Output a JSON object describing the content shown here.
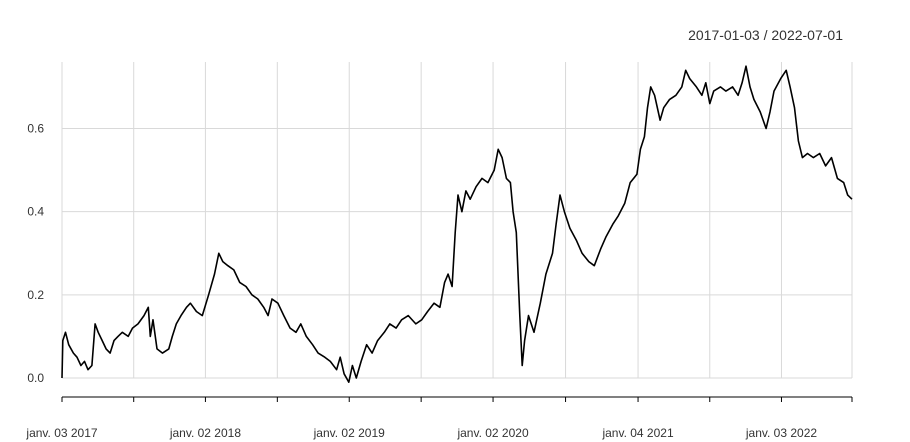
{
  "chart_data": {
    "type": "line",
    "title": "",
    "range_label": "2017-01-03 / 2022-07-01",
    "xlabel": "",
    "ylabel": "",
    "x_start": "2017-01-03",
    "x_end": "2022-07-01",
    "ylim": [
      -0.01,
      0.76
    ],
    "y_ticks": [
      0.0,
      0.2,
      0.4,
      0.6
    ],
    "y_tick_labels": [
      "0.0",
      "0.2",
      "0.4",
      "0.6"
    ],
    "x_tick_labels": [
      "janv. 03 2017",
      "janv. 02 2018",
      "janv. 02 2019",
      "janv. 02 2020",
      "janv. 04 2021",
      "janv. 03 2022"
    ],
    "x_tick_dates": [
      "2017-01-03",
      "2018-01-02",
      "2019-01-02",
      "2020-01-02",
      "2021-01-04",
      "2022-01-03"
    ],
    "grid": true,
    "series": [
      {
        "color": "#000000",
        "points": [
          [
            "2017-01-03",
            0.0
          ],
          [
            "2017-01-05",
            0.09
          ],
          [
            "2017-01-12",
            0.11
          ],
          [
            "2017-01-20",
            0.08
          ],
          [
            "2017-02-01",
            0.06
          ],
          [
            "2017-02-10",
            0.05
          ],
          [
            "2017-02-20",
            0.03
          ],
          [
            "2017-03-01",
            0.04
          ],
          [
            "2017-03-10",
            0.02
          ],
          [
            "2017-03-20",
            0.03
          ],
          [
            "2017-03-28",
            0.13
          ],
          [
            "2017-04-05",
            0.11
          ],
          [
            "2017-04-15",
            0.09
          ],
          [
            "2017-04-25",
            0.07
          ],
          [
            "2017-05-05",
            0.06
          ],
          [
            "2017-05-15",
            0.09
          ],
          [
            "2017-05-25",
            0.1
          ],
          [
            "2017-06-05",
            0.11
          ],
          [
            "2017-06-20",
            0.1
          ],
          [
            "2017-07-01",
            0.12
          ],
          [
            "2017-07-15",
            0.13
          ],
          [
            "2017-07-30",
            0.15
          ],
          [
            "2017-08-10",
            0.17
          ],
          [
            "2017-08-15",
            0.1
          ],
          [
            "2017-08-22",
            0.14
          ],
          [
            "2017-09-01",
            0.07
          ],
          [
            "2017-09-15",
            0.06
          ],
          [
            "2017-10-01",
            0.07
          ],
          [
            "2017-10-10",
            0.1
          ],
          [
            "2017-10-20",
            0.13
          ],
          [
            "2017-11-01",
            0.15
          ],
          [
            "2017-11-15",
            0.17
          ],
          [
            "2017-11-25",
            0.18
          ],
          [
            "2017-12-10",
            0.16
          ],
          [
            "2017-12-25",
            0.15
          ],
          [
            "2018-01-10",
            0.2
          ],
          [
            "2018-01-25",
            0.25
          ],
          [
            "2018-02-05",
            0.3
          ],
          [
            "2018-02-15",
            0.28
          ],
          [
            "2018-02-28",
            0.27
          ],
          [
            "2018-03-15",
            0.26
          ],
          [
            "2018-03-30",
            0.23
          ],
          [
            "2018-04-15",
            0.22
          ],
          [
            "2018-04-30",
            0.2
          ],
          [
            "2018-05-15",
            0.19
          ],
          [
            "2018-05-30",
            0.17
          ],
          [
            "2018-06-10",
            0.15
          ],
          [
            "2018-06-20",
            0.19
          ],
          [
            "2018-07-05",
            0.18
          ],
          [
            "2018-07-20",
            0.15
          ],
          [
            "2018-08-05",
            0.12
          ],
          [
            "2018-08-20",
            0.11
          ],
          [
            "2018-09-01",
            0.13
          ],
          [
            "2018-09-15",
            0.1
          ],
          [
            "2018-10-01",
            0.08
          ],
          [
            "2018-10-15",
            0.06
          ],
          [
            "2018-11-01",
            0.05
          ],
          [
            "2018-11-15",
            0.04
          ],
          [
            "2018-12-01",
            0.02
          ],
          [
            "2018-12-10",
            0.05
          ],
          [
            "2018-12-20",
            0.01
          ],
          [
            "2019-01-01",
            -0.01
          ],
          [
            "2019-01-10",
            0.03
          ],
          [
            "2019-01-20",
            0.0
          ],
          [
            "2019-02-01",
            0.04
          ],
          [
            "2019-02-15",
            0.08
          ],
          [
            "2019-03-01",
            0.06
          ],
          [
            "2019-03-15",
            0.09
          ],
          [
            "2019-04-01",
            0.11
          ],
          [
            "2019-04-15",
            0.13
          ],
          [
            "2019-05-01",
            0.12
          ],
          [
            "2019-05-15",
            0.14
          ],
          [
            "2019-06-01",
            0.15
          ],
          [
            "2019-06-20",
            0.13
          ],
          [
            "2019-07-05",
            0.14
          ],
          [
            "2019-07-20",
            0.16
          ],
          [
            "2019-08-05",
            0.18
          ],
          [
            "2019-08-20",
            0.17
          ],
          [
            "2019-09-01",
            0.23
          ],
          [
            "2019-09-10",
            0.25
          ],
          [
            "2019-09-20",
            0.22
          ],
          [
            "2019-09-28",
            0.35
          ],
          [
            "2019-10-05",
            0.44
          ],
          [
            "2019-10-15",
            0.4
          ],
          [
            "2019-10-25",
            0.45
          ],
          [
            "2019-11-05",
            0.43
          ],
          [
            "2019-11-20",
            0.46
          ],
          [
            "2019-12-05",
            0.48
          ],
          [
            "2019-12-20",
            0.47
          ],
          [
            "2020-01-05",
            0.5
          ],
          [
            "2020-01-15",
            0.55
          ],
          [
            "2020-01-25",
            0.53
          ],
          [
            "2020-02-05",
            0.48
          ],
          [
            "2020-02-15",
            0.47
          ],
          [
            "2020-02-22",
            0.4
          ],
          [
            "2020-03-01",
            0.35
          ],
          [
            "2020-03-10",
            0.15
          ],
          [
            "2020-03-16",
            0.03
          ],
          [
            "2020-03-22",
            0.09
          ],
          [
            "2020-04-01",
            0.15
          ],
          [
            "2020-04-15",
            0.11
          ],
          [
            "2020-05-01",
            0.18
          ],
          [
            "2020-05-15",
            0.25
          ],
          [
            "2020-06-01",
            0.3
          ],
          [
            "2020-06-10",
            0.37
          ],
          [
            "2020-06-20",
            0.44
          ],
          [
            "2020-07-01",
            0.4
          ],
          [
            "2020-07-15",
            0.36
          ],
          [
            "2020-08-01",
            0.33
          ],
          [
            "2020-08-15",
            0.3
          ],
          [
            "2020-09-01",
            0.28
          ],
          [
            "2020-09-15",
            0.27
          ],
          [
            "2020-10-01",
            0.31
          ],
          [
            "2020-10-15",
            0.34
          ],
          [
            "2020-11-01",
            0.37
          ],
          [
            "2020-11-15",
            0.39
          ],
          [
            "2020-12-01",
            0.42
          ],
          [
            "2020-12-15",
            0.47
          ],
          [
            "2021-01-01",
            0.49
          ],
          [
            "2021-01-10",
            0.55
          ],
          [
            "2021-01-20",
            0.58
          ],
          [
            "2021-01-28",
            0.65
          ],
          [
            "2021-02-05",
            0.7
          ],
          [
            "2021-02-15",
            0.68
          ],
          [
            "2021-03-01",
            0.62
          ],
          [
            "2021-03-10",
            0.65
          ],
          [
            "2021-03-25",
            0.67
          ],
          [
            "2021-04-10",
            0.68
          ],
          [
            "2021-04-25",
            0.7
          ],
          [
            "2021-05-05",
            0.74
          ],
          [
            "2021-05-15",
            0.72
          ],
          [
            "2021-06-01",
            0.7
          ],
          [
            "2021-06-15",
            0.68
          ],
          [
            "2021-06-25",
            0.71
          ],
          [
            "2021-07-05",
            0.66
          ],
          [
            "2021-07-15",
            0.69
          ],
          [
            "2021-08-01",
            0.7
          ],
          [
            "2021-08-15",
            0.69
          ],
          [
            "2021-09-01",
            0.7
          ],
          [
            "2021-09-15",
            0.68
          ],
          [
            "2021-09-25",
            0.71
          ],
          [
            "2021-10-05",
            0.75
          ],
          [
            "2021-10-15",
            0.7
          ],
          [
            "2021-10-25",
            0.67
          ],
          [
            "2021-11-10",
            0.64
          ],
          [
            "2021-11-25",
            0.6
          ],
          [
            "2021-12-05",
            0.64
          ],
          [
            "2021-12-15",
            0.69
          ],
          [
            "2022-01-01",
            0.72
          ],
          [
            "2022-01-15",
            0.74
          ],
          [
            "2022-01-25",
            0.7
          ],
          [
            "2022-02-05",
            0.65
          ],
          [
            "2022-02-15",
            0.57
          ],
          [
            "2022-02-25",
            0.53
          ],
          [
            "2022-03-10",
            0.54
          ],
          [
            "2022-03-25",
            0.53
          ],
          [
            "2022-04-10",
            0.54
          ],
          [
            "2022-04-25",
            0.51
          ],
          [
            "2022-05-10",
            0.53
          ],
          [
            "2022-05-25",
            0.48
          ],
          [
            "2022-06-10",
            0.47
          ],
          [
            "2022-06-20",
            0.44
          ],
          [
            "2022-07-01",
            0.43
          ]
        ]
      }
    ]
  }
}
